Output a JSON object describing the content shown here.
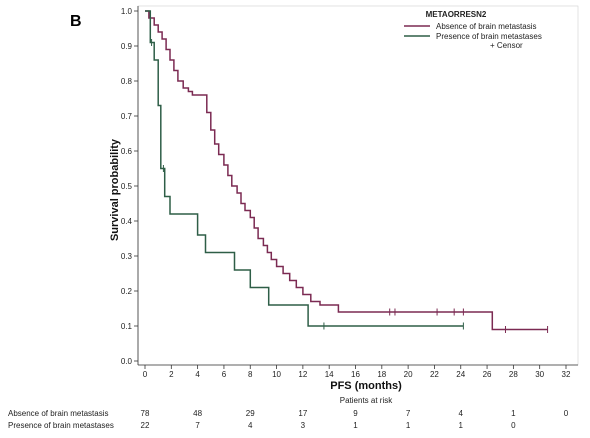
{
  "panel_label": "B",
  "chart_data": {
    "type": "line",
    "subtype": "kaplan-meier",
    "xlabel": "PFS (months)",
    "ylabel": "Survival probability",
    "xlim": [
      0,
      32
    ],
    "ylim": [
      0,
      1.0
    ],
    "x_ticks": [
      "0",
      "2",
      "4",
      "6",
      "8",
      "10",
      "12",
      "14",
      "16",
      "18",
      "20",
      "22",
      "24",
      "26",
      "28",
      "30",
      "32"
    ],
    "y_ticks": [
      "0.0",
      "0.1",
      "0.2",
      "0.3",
      "0.4",
      "0.5",
      "0.6",
      "0.7",
      "0.8",
      "0.9",
      "1.0"
    ],
    "grid": false,
    "legend": {
      "title": "METAORRESN2",
      "placement": "top-right",
      "censor_label": "+ Censor"
    },
    "series": [
      {
        "name": "Absence of brain metastasis",
        "color": "#7b2a52",
        "x": [
          0,
          0.3,
          0.3,
          0.7,
          0.7,
          1.0,
          1.0,
          1.3,
          1.3,
          1.6,
          1.6,
          1.9,
          1.9,
          2.2,
          2.2,
          2.5,
          2.5,
          2.9,
          2.9,
          3.3,
          3.3,
          3.6,
          3.6,
          4.7,
          4.7,
          5.0,
          5.0,
          5.3,
          5.3,
          5.6,
          5.6,
          6.0,
          6.0,
          6.3,
          6.3,
          6.6,
          6.6,
          7.0,
          7.0,
          7.3,
          7.3,
          7.6,
          7.6,
          8.0,
          8.0,
          8.3,
          8.3,
          8.6,
          8.6,
          9.0,
          9.0,
          9.3,
          9.3,
          9.6,
          9.6,
          10.0,
          10.0,
          10.5,
          10.5,
          11.0,
          11.0,
          11.5,
          11.5,
          12.0,
          12.0,
          12.6,
          12.6,
          13.3,
          13.3,
          14.7,
          14.7,
          20.6,
          20.6,
          26.4,
          26.4,
          30.6
        ],
        "y": [
          1.0,
          1.0,
          0.98,
          0.98,
          0.96,
          0.96,
          0.94,
          0.94,
          0.92,
          0.92,
          0.89,
          0.89,
          0.86,
          0.86,
          0.83,
          0.83,
          0.8,
          0.8,
          0.78,
          0.78,
          0.77,
          0.77,
          0.76,
          0.76,
          0.71,
          0.71,
          0.66,
          0.66,
          0.62,
          0.62,
          0.59,
          0.59,
          0.56,
          0.56,
          0.53,
          0.53,
          0.5,
          0.5,
          0.48,
          0.48,
          0.45,
          0.45,
          0.43,
          0.43,
          0.41,
          0.41,
          0.38,
          0.38,
          0.35,
          0.35,
          0.33,
          0.33,
          0.31,
          0.31,
          0.29,
          0.29,
          0.27,
          0.27,
          0.25,
          0.25,
          0.23,
          0.23,
          0.21,
          0.21,
          0.19,
          0.19,
          0.17,
          0.17,
          0.16,
          0.16,
          0.14,
          0.14,
          0.14,
          0.14,
          0.09,
          0.09
        ],
        "censors_x": [
          18.6,
          19.0,
          22.2,
          23.5,
          24.2,
          27.4,
          30.6
        ]
      },
      {
        "name": "Presence of brain metastases",
        "color": "#2e5e47",
        "x": [
          0,
          0.4,
          0.4,
          0.7,
          0.7,
          1.0,
          1.0,
          1.2,
          1.2,
          1.5,
          1.5,
          1.9,
          1.9,
          3.5,
          3.5,
          4.0,
          4.0,
          4.6,
          4.6,
          6.0,
          6.0,
          6.8,
          6.8,
          7.5,
          7.5,
          8.0,
          8.0,
          9.4,
          9.4,
          10.3,
          10.3,
          11.8,
          11.8,
          12.4,
          12.4,
          24.2
        ],
        "y": [
          1.0,
          1.0,
          0.91,
          0.91,
          0.86,
          0.86,
          0.73,
          0.73,
          0.55,
          0.55,
          0.47,
          0.47,
          0.42,
          0.42,
          0.42,
          0.42,
          0.36,
          0.36,
          0.31,
          0.31,
          0.31,
          0.31,
          0.26,
          0.26,
          0.26,
          0.26,
          0.21,
          0.21,
          0.16,
          0.16,
          0.16,
          0.16,
          0.16,
          0.16,
          0.1,
          0.1
        ],
        "censors_x": [
          0.5,
          1.4,
          13.6,
          24.2
        ]
      }
    ],
    "risk_table": {
      "title": "Patients at risk",
      "time_points": [
        0,
        4,
        8,
        12,
        16,
        20,
        24,
        28,
        32
      ],
      "rows": [
        {
          "label": "Absence of brain metastasis",
          "values": [
            "78",
            "48",
            "29",
            "17",
            "9",
            "7",
            "4",
            "1",
            "0"
          ]
        },
        {
          "label": "Presence of brain metastases",
          "values": [
            "22",
            "7",
            "4",
            "3",
            "1",
            "1",
            "1",
            "0",
            ""
          ]
        }
      ]
    }
  }
}
